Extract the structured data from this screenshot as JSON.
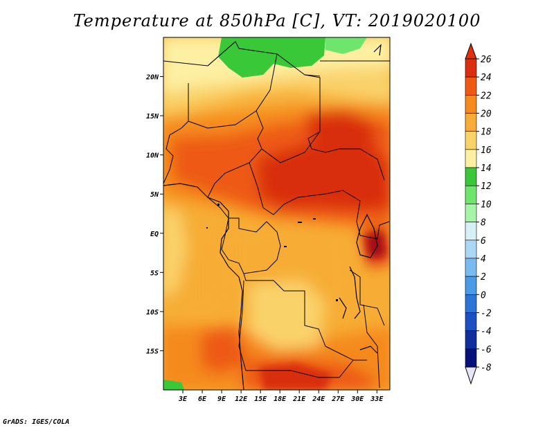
{
  "title": "Temperature at 850hPa [C], VT: 2019020100",
  "credit": "GrADS: IGES/COLA",
  "map": {
    "lon_range": [
      0,
      35
    ],
    "lat_range": [
      -20,
      25
    ],
    "lon_ticks": [
      "3E",
      "6E",
      "9E",
      "12E",
      "15E",
      "18E",
      "21E",
      "24E",
      "27E",
      "30E",
      "33E"
    ],
    "lon_tick_values": [
      3,
      6,
      9,
      12,
      15,
      18,
      21,
      24,
      27,
      30,
      33
    ],
    "lat_ticks": [
      "20N",
      "15N",
      "10N",
      "5N",
      "EQ",
      "5S",
      "10S",
      "15S"
    ],
    "lat_tick_values": [
      20,
      15,
      10,
      5,
      0,
      -5,
      -10,
      -15
    ]
  },
  "colorbar": {
    "labels": [
      "26",
      "24",
      "22",
      "20",
      "18",
      "16",
      "14",
      "12",
      "10",
      "8",
      "6",
      "4",
      "2",
      "0",
      "-2",
      "-4",
      "-6",
      "-8"
    ],
    "colors": [
      "#a50f15",
      "#d92f0e",
      "#ee5a14",
      "#f58a1e",
      "#f7ad35",
      "#fad26a",
      "#fdf0a2",
      "#38c838",
      "#6ee66e",
      "#a6f5a6",
      "#d6f0f8",
      "#a9d7f5",
      "#78bcef",
      "#4a9be6",
      "#2a75d6",
      "#1a50c0",
      "#0e2f9c",
      "#06127a"
    ],
    "upper_arrow_color": "#e22f0e",
    "lower_arrow_color": "#e6e6fa"
  }
}
